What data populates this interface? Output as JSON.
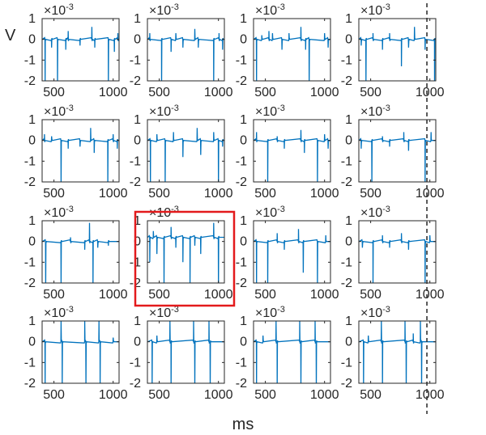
{
  "chart_data": {
    "type": "line",
    "grid_layout": {
      "rows": 4,
      "cols": 4
    },
    "ylabel": "V",
    "xlabel": "ms",
    "y_exponent": {
      "base": "×10",
      "power": "-3"
    },
    "xlim": [
      400,
      1050
    ],
    "ylim": [
      -2,
      1
    ],
    "xticks": [
      500,
      1000
    ],
    "yticks": [
      -2,
      -1,
      0,
      1
    ],
    "xtick_labels": [
      "500",
      "1000"
    ],
    "ytick_labels": [
      "-2",
      "-1",
      "0",
      "1"
    ],
    "series_color": "#0072BD",
    "highlight": {
      "row": 2,
      "col": 1,
      "color": "#E31A1C"
    },
    "vertical_marker": {
      "x": 975,
      "cols": [
        3
      ],
      "color": "#333333",
      "style": "dashed"
    },
    "panels": [
      {
        "row": 0,
        "col": 0,
        "baseline": 0.0,
        "events": [
          {
            "x": 425,
            "y": -2.2
          },
          {
            "x": 480,
            "y": -0.4
          },
          {
            "x": 530,
            "y": -2.2
          },
          {
            "x": 600,
            "y": -0.5
          },
          {
            "x": 620,
            "y": 0.4
          },
          {
            "x": 720,
            "y": -0.3
          },
          {
            "x": 820,
            "y": 0.6
          },
          {
            "x": 845,
            "y": -0.4
          },
          {
            "x": 960,
            "y": -2.2
          },
          {
            "x": 1010,
            "y": -0.6
          },
          {
            "x": 1040,
            "y": 0.3
          }
        ]
      },
      {
        "row": 0,
        "col": 1,
        "baseline": 0.0,
        "events": [
          {
            "x": 420,
            "y": 0.3
          },
          {
            "x": 520,
            "y": -2.2
          },
          {
            "x": 600,
            "y": -0.6
          },
          {
            "x": 640,
            "y": 0.3
          },
          {
            "x": 700,
            "y": -0.4
          },
          {
            "x": 800,
            "y": 0.5
          },
          {
            "x": 830,
            "y": -0.4
          },
          {
            "x": 960,
            "y": -2.2
          },
          {
            "x": 1005,
            "y": 0.3
          },
          {
            "x": 1035,
            "y": -0.5
          }
        ]
      },
      {
        "row": 0,
        "col": 2,
        "baseline": 0.0,
        "events": [
          {
            "x": 425,
            "y": -2.2
          },
          {
            "x": 470,
            "y": 0.2
          },
          {
            "x": 530,
            "y": 0.4
          },
          {
            "x": 560,
            "y": 0.3
          },
          {
            "x": 640,
            "y": -0.5
          },
          {
            "x": 700,
            "y": 0.3
          },
          {
            "x": 800,
            "y": 0.6
          },
          {
            "x": 840,
            "y": -0.5
          },
          {
            "x": 870,
            "y": -2.2
          },
          {
            "x": 1000,
            "y": 0.3
          },
          {
            "x": 1030,
            "y": -0.4
          }
        ]
      },
      {
        "row": 0,
        "col": 3,
        "baseline": 0.0,
        "events": [
          {
            "x": 420,
            "y": -0.3
          },
          {
            "x": 460,
            "y": -2.2
          },
          {
            "x": 520,
            "y": 0.3
          },
          {
            "x": 600,
            "y": -0.5
          },
          {
            "x": 660,
            "y": 0.3
          },
          {
            "x": 760,
            "y": -1.3
          },
          {
            "x": 820,
            "y": -0.4
          },
          {
            "x": 870,
            "y": 0.6
          },
          {
            "x": 960,
            "y": -0.5
          },
          {
            "x": 1040,
            "y": -2.2
          }
        ]
      },
      {
        "row": 1,
        "col": 0,
        "baseline": 0.0,
        "events": [
          {
            "x": 420,
            "y": 0.3
          },
          {
            "x": 480,
            "y": 0.2
          },
          {
            "x": 560,
            "y": -2.2
          },
          {
            "x": 620,
            "y": -0.4
          },
          {
            "x": 720,
            "y": -0.3
          },
          {
            "x": 810,
            "y": 0.6
          },
          {
            "x": 840,
            "y": -0.6
          },
          {
            "x": 955,
            "y": -2.2
          },
          {
            "x": 1000,
            "y": 0.3
          },
          {
            "x": 1035,
            "y": -0.4
          }
        ]
      },
      {
        "row": 1,
        "col": 1,
        "baseline": 0.0,
        "events": [
          {
            "x": 425,
            "y": -2.2
          },
          {
            "x": 480,
            "y": 0.3
          },
          {
            "x": 550,
            "y": -2.2
          },
          {
            "x": 620,
            "y": 0.4
          },
          {
            "x": 700,
            "y": -0.8
          },
          {
            "x": 820,
            "y": 0.6
          },
          {
            "x": 850,
            "y": -0.7
          },
          {
            "x": 960,
            "y": 0.4
          },
          {
            "x": 1000,
            "y": -2.2
          },
          {
            "x": 1035,
            "y": -0.3
          }
        ]
      },
      {
        "row": 1,
        "col": 2,
        "baseline": 0.0,
        "events": [
          {
            "x": 425,
            "y": 0.4
          },
          {
            "x": 520,
            "y": -2.2
          },
          {
            "x": 600,
            "y": 0.2
          },
          {
            "x": 660,
            "y": -0.4
          },
          {
            "x": 800,
            "y": 0.5
          },
          {
            "x": 830,
            "y": -0.6
          },
          {
            "x": 940,
            "y": -2.2
          },
          {
            "x": 1000,
            "y": 0.3
          },
          {
            "x": 1030,
            "y": -0.4
          }
        ]
      },
      {
        "row": 1,
        "col": 3,
        "baseline": 0.0,
        "events": [
          {
            "x": 420,
            "y": -0.4
          },
          {
            "x": 510,
            "y": -2.2
          },
          {
            "x": 600,
            "y": 0.2
          },
          {
            "x": 660,
            "y": -0.3
          },
          {
            "x": 780,
            "y": 0.4
          },
          {
            "x": 820,
            "y": -0.5
          },
          {
            "x": 960,
            "y": -2.2
          },
          {
            "x": 1010,
            "y": 0.4
          }
        ]
      },
      {
        "row": 2,
        "col": 0,
        "baseline": 0.0,
        "events": [
          {
            "x": 430,
            "y": -2.2
          },
          {
            "x": 560,
            "y": -2.2
          },
          {
            "x": 640,
            "y": 0.2
          },
          {
            "x": 760,
            "y": -0.4
          },
          {
            "x": 800,
            "y": 0.9
          },
          {
            "x": 830,
            "y": -2.2
          },
          {
            "x": 870,
            "y": -0.3
          },
          {
            "x": 960,
            "y": -0.2
          }
        ]
      },
      {
        "row": 2,
        "col": 1,
        "baseline": 0.2,
        "events": [
          {
            "x": 420,
            "y": -1.0
          },
          {
            "x": 450,
            "y": 0.5
          },
          {
            "x": 480,
            "y": -0.6
          },
          {
            "x": 540,
            "y": -2.2
          },
          {
            "x": 600,
            "y": 0.7
          },
          {
            "x": 640,
            "y": -0.3
          },
          {
            "x": 700,
            "y": -1.0
          },
          {
            "x": 760,
            "y": -2.2
          },
          {
            "x": 800,
            "y": -0.2
          },
          {
            "x": 850,
            "y": -0.6
          },
          {
            "x": 960,
            "y": 0.9
          },
          {
            "x": 1000,
            "y": -2.2
          }
        ]
      },
      {
        "row": 2,
        "col": 2,
        "baseline": 0.0,
        "events": [
          {
            "x": 425,
            "y": -2.2
          },
          {
            "x": 520,
            "y": -2.2
          },
          {
            "x": 600,
            "y": 0.4
          },
          {
            "x": 660,
            "y": -0.4
          },
          {
            "x": 780,
            "y": 0.6
          },
          {
            "x": 820,
            "y": -1.5
          },
          {
            "x": 940,
            "y": -2.2
          },
          {
            "x": 1010,
            "y": 0.3
          }
        ]
      },
      {
        "row": 2,
        "col": 3,
        "baseline": 0.0,
        "events": [
          {
            "x": 430,
            "y": -0.3
          },
          {
            "x": 520,
            "y": -2.2
          },
          {
            "x": 600,
            "y": 0.3
          },
          {
            "x": 660,
            "y": -0.3
          },
          {
            "x": 760,
            "y": 0.4
          },
          {
            "x": 820,
            "y": -0.4
          },
          {
            "x": 960,
            "y": -2.2
          },
          {
            "x": 1000,
            "y": 0.3
          }
        ]
      },
      {
        "row": 3,
        "col": 0,
        "baseline": 0.0,
        "events": [
          {
            "x": 425,
            "y": -2.2
          },
          {
            "x": 560,
            "y": 1.0
          },
          {
            "x": 570,
            "y": -2.2
          },
          {
            "x": 760,
            "y": 1.0
          },
          {
            "x": 770,
            "y": -2.2
          },
          {
            "x": 880,
            "y": 1.0
          },
          {
            "x": 890,
            "y": -2.2
          },
          {
            "x": 1000,
            "y": 0.2
          }
        ]
      },
      {
        "row": 3,
        "col": 1,
        "baseline": 0.0,
        "events": [
          {
            "x": 440,
            "y": -2.2
          },
          {
            "x": 480,
            "y": 0.3
          },
          {
            "x": 590,
            "y": 1.0
          },
          {
            "x": 600,
            "y": -2.2
          },
          {
            "x": 790,
            "y": 1.0
          },
          {
            "x": 800,
            "y": -2.2
          },
          {
            "x": 920,
            "y": 1.0
          },
          {
            "x": 930,
            "y": -2.2
          }
        ]
      },
      {
        "row": 3,
        "col": 2,
        "baseline": 0.0,
        "events": [
          {
            "x": 425,
            "y": -2.2
          },
          {
            "x": 480,
            "y": 0.3
          },
          {
            "x": 590,
            "y": 1.0
          },
          {
            "x": 600,
            "y": -2.2
          },
          {
            "x": 790,
            "y": 1.0
          },
          {
            "x": 800,
            "y": -2.2
          },
          {
            "x": 920,
            "y": 1.0
          },
          {
            "x": 930,
            "y": -2.2
          }
        ]
      },
      {
        "row": 3,
        "col": 3,
        "baseline": 0.0,
        "events": [
          {
            "x": 440,
            "y": -2.2
          },
          {
            "x": 480,
            "y": 0.3
          },
          {
            "x": 590,
            "y": 1.0
          },
          {
            "x": 600,
            "y": -2.2
          },
          {
            "x": 790,
            "y": 1.0
          },
          {
            "x": 800,
            "y": -2.2
          },
          {
            "x": 860,
            "y": 0.4
          },
          {
            "x": 920,
            "y": 1.0
          },
          {
            "x": 930,
            "y": -2.2
          }
        ]
      }
    ]
  }
}
